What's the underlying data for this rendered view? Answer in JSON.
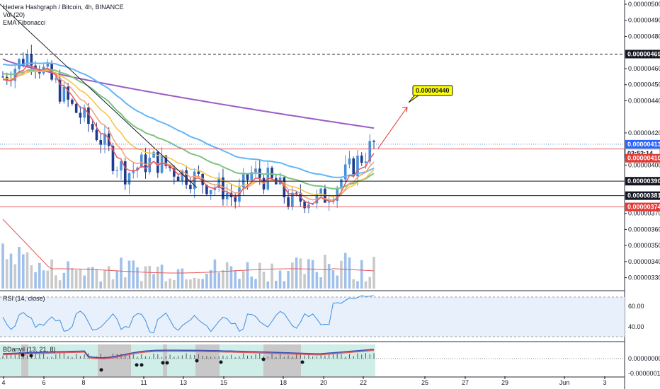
{
  "header": {
    "symbol_title": "Hedera Hashgraph / Bitcoin, 4h, BINANCE",
    "indicator_vol": "Vol (20)",
    "indicator_ema": "EMA Fibonacci"
  },
  "rsi": {
    "label": "RSI (14, close)",
    "levels": [
      "60.00",
      "40.00"
    ]
  },
  "bottom_indicator": {
    "label": "BDanyil (13, 21, 8)",
    "levels": [
      "0.00000000",
      "-0.00000010"
    ]
  },
  "price_axis_ticks": [
    "0.00000500",
    "0.00000490",
    "0.00000480",
    "0.00000460",
    "0.00000450",
    "0.00000440",
    "0.00000420",
    "0.00000400",
    "0.00000370",
    "0.00000360",
    "0.00000350",
    "0.00000340",
    "0.00000330"
  ],
  "price_tags": [
    {
      "label": "0.00000469",
      "style": "black"
    },
    {
      "label": "0.00000413",
      "style": "blue"
    },
    {
      "label": "03:52:14",
      "style": "white"
    },
    {
      "label": "0.00000410",
      "style": "red"
    },
    {
      "label": "0.00000390",
      "style": "black"
    },
    {
      "label": "0.00000381",
      "style": "black"
    },
    {
      "label": "0.00000374",
      "style": "red"
    }
  ],
  "target_callout": "0.00000440",
  "time_axis_labels": [
    "4",
    "6",
    "8",
    "11",
    "13",
    "15",
    "18",
    "20",
    "22",
    "25",
    "27",
    "29",
    "Jun",
    "3"
  ],
  "colors": {
    "up": "#4a8fd9",
    "down": "#1f3b8f",
    "ema_purple": "#9c5cc4",
    "ema_blue": "#64b5f6",
    "ema_green": "#7dc383",
    "ema_yellow": "#f6c244",
    "ema_orange": "#f0a070",
    "ema_red": "#e5595e",
    "rsi_bg": "#e8f0fb",
    "rsi_line": "#3d8fe0",
    "teal_bg": "#cfeee8",
    "grey_bg": "#c8c8c8"
  },
  "chart_data": {
    "type": "line",
    "title": "Hedera Hashgraph / Bitcoin, 4h, BINANCE",
    "xlabel": "",
    "ylabel": "",
    "x_ticks": [
      "4",
      "6",
      "8",
      "11",
      "13",
      "15",
      "18",
      "20",
      "22",
      "25",
      "27",
      "29",
      "Jun",
      "3"
    ],
    "ylim": [
      3.25e-06,
      5e-06
    ],
    "horizontal_levels": [
      4.69e-06,
      4.1e-06,
      3.9e-06,
      3.81e-06,
      3.74e-06
    ],
    "current_price": 4.13e-06,
    "target_price": 4.4e-06,
    "series": [
      {
        "name": "",
        "role": "close",
        "values": [
          4.55e-06,
          4.62e-06,
          4.7e-06,
          4.58e-06,
          4.48e-06,
          4.36e-06,
          4.28e-06,
          4.18e-06,
          4.04e-06,
          3.95e-06,
          4e-06,
          4.03e-06,
          3.99e-06,
          3.95e-06,
          3.92e-06,
          3.88e-06,
          3.85e-06,
          3.78e-06,
          3.95e-06,
          3.92e-06,
          3.87e-06,
          3.76e-06,
          3.8e-06,
          3.78e-06,
          3.85e-06,
          3.95e-06,
          4.04e-06,
          4.13e-06
        ]
      }
    ]
  }
}
